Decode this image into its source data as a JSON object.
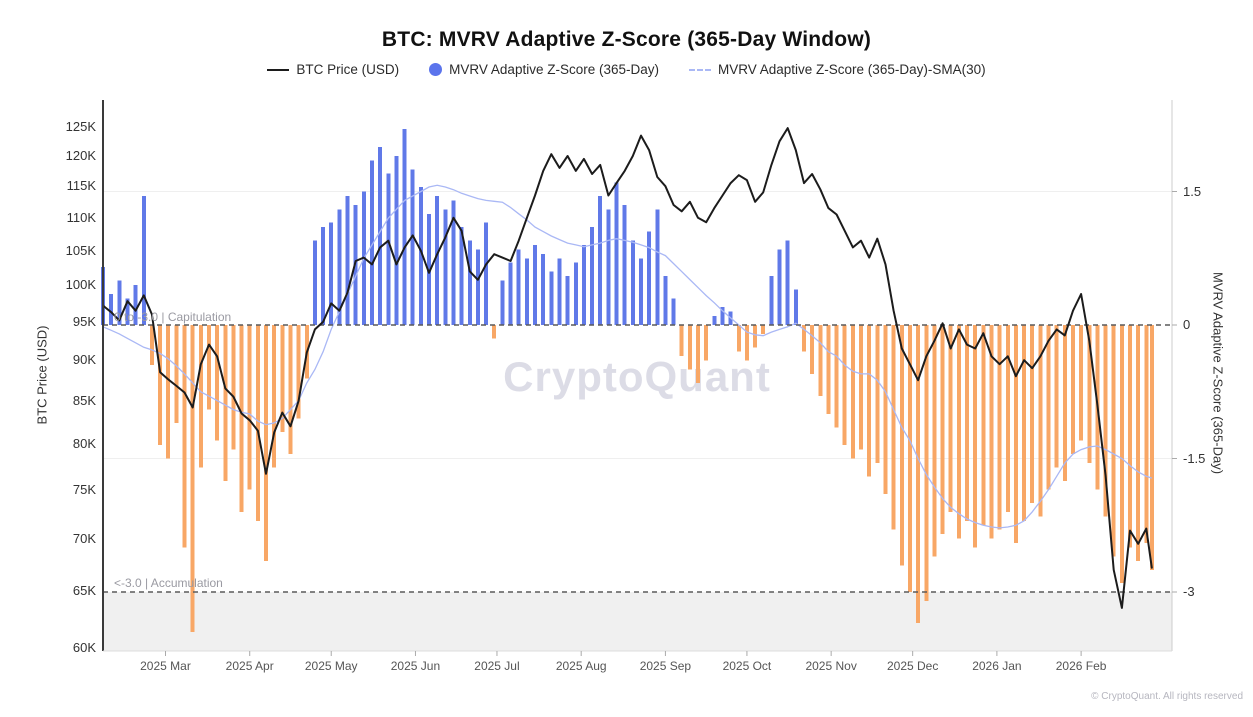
{
  "title": "BTC: MVRV Adaptive Z-Score (365-Day Window)",
  "watermark": "CryptoQuant",
  "footer": "© CryptoQuant. All rights reserved",
  "legend": [
    {
      "label": "BTC Price (USD)",
      "marker": "line",
      "color": "#1c1c1c"
    },
    {
      "label": "MVRV Adaptive Z-Score (365-Day)",
      "marker": "circle",
      "color": "#5b74ec"
    },
    {
      "label": "MVRV Adaptive Z-Score (365-Day)-SMA(30)",
      "marker": "thin-line",
      "color": "#aab8f5"
    }
  ],
  "annotations": {
    "capitulation": "0 to -3.0 | Capitulation",
    "accumulation": "<-3.0 | Accumulation"
  },
  "left_axis": {
    "title": "BTC Price (USD)",
    "scale": "log",
    "ticks": [
      {
        "v": 125,
        "label": "125K"
      },
      {
        "v": 120,
        "label": "120K"
      },
      {
        "v": 115,
        "label": "115K"
      },
      {
        "v": 110,
        "label": "110K"
      },
      {
        "v": 105,
        "label": "105K"
      },
      {
        "v": 100,
        "label": "100K"
      },
      {
        "v": 95,
        "label": "95K"
      },
      {
        "v": 90,
        "label": "90K"
      },
      {
        "v": 85,
        "label": "85K"
      },
      {
        "v": 80,
        "label": "80K"
      },
      {
        "v": 75,
        "label": "75K"
      },
      {
        "v": 70,
        "label": "70K"
      },
      {
        "v": 65,
        "label": "65K"
      },
      {
        "v": 60,
        "label": "60K"
      }
    ]
  },
  "right_axis": {
    "title": "MVRV Adaptive Z-Score (365-Day)",
    "ticks": [
      {
        "v": 1.5,
        "label": "1.5"
      },
      {
        "v": 0,
        "label": "0"
      },
      {
        "v": -1.5,
        "label": "-1.5"
      },
      {
        "v": -3,
        "label": "-3"
      }
    ]
  },
  "x_axis": {
    "ticks": [
      {
        "date": "2025-03-01",
        "label": "2025 Mar"
      },
      {
        "date": "2025-04-01",
        "label": "2025 Apr"
      },
      {
        "date": "2025-05-01",
        "label": "2025 May"
      },
      {
        "date": "2025-06-01",
        "label": "2025 Jun"
      },
      {
        "date": "2025-07-01",
        "label": "2025 Jul"
      },
      {
        "date": "2025-08-01",
        "label": "2025 Aug"
      },
      {
        "date": "2025-09-01",
        "label": "2025 Sep"
      },
      {
        "date": "2025-10-01",
        "label": "2025 Oct"
      },
      {
        "date": "2025-11-01",
        "label": "2025 Nov"
      },
      {
        "date": "2025-12-01",
        "label": "2025 Dec"
      },
      {
        "date": "2026-01-01",
        "label": "2026 Jan"
      },
      {
        "date": "2026-02-01",
        "label": "2026 Feb"
      }
    ]
  },
  "chart_data": {
    "type": "mixed",
    "title": "BTC: MVRV Adaptive Z-Score (365-Day Window)",
    "x_unit": "date",
    "price_unit": "thousand USD (log scale)",
    "z_axis_range": [
      -3.6,
      2.5
    ],
    "zones": {
      "capitulation": {
        "from": -3.0,
        "to": 0,
        "label": "0 to -3.0 | Capitulation"
      },
      "accumulation": {
        "below": -3.0,
        "label": "<-3.0 | Accumulation",
        "fill": "#f0f0f0"
      }
    },
    "dashed_lines_z": [
      0,
      -3
    ],
    "faint_gridlines_z": [
      1.5,
      -1.5
    ],
    "colors": {
      "price_line": "#1c1c1c",
      "bar_positive": "#6079e8",
      "bar_negative": "#f8a766",
      "sma_line": "#aab8f5",
      "dashed_line": "#5a5a5a"
    },
    "x": [
      "2025-02-06",
      "2025-02-09",
      "2025-02-12",
      "2025-02-15",
      "2025-02-18",
      "2025-02-21",
      "2025-02-24",
      "2025-02-27",
      "2025-03-02",
      "2025-03-05",
      "2025-03-08",
      "2025-03-11",
      "2025-03-14",
      "2025-03-17",
      "2025-03-20",
      "2025-03-23",
      "2025-03-26",
      "2025-03-29",
      "2025-04-01",
      "2025-04-04",
      "2025-04-07",
      "2025-04-10",
      "2025-04-13",
      "2025-04-16",
      "2025-04-19",
      "2025-04-22",
      "2025-04-25",
      "2025-04-28",
      "2025-05-01",
      "2025-05-04",
      "2025-05-07",
      "2025-05-10",
      "2025-05-13",
      "2025-05-16",
      "2025-05-19",
      "2025-05-22",
      "2025-05-25",
      "2025-05-28",
      "2025-05-31",
      "2025-06-03",
      "2025-06-06",
      "2025-06-09",
      "2025-06-12",
      "2025-06-15",
      "2025-06-18",
      "2025-06-21",
      "2025-06-24",
      "2025-06-27",
      "2025-06-30",
      "2025-07-03",
      "2025-07-06",
      "2025-07-09",
      "2025-07-12",
      "2025-07-15",
      "2025-07-18",
      "2025-07-21",
      "2025-07-24",
      "2025-07-27",
      "2025-07-30",
      "2025-08-02",
      "2025-08-05",
      "2025-08-08",
      "2025-08-11",
      "2025-08-14",
      "2025-08-17",
      "2025-08-20",
      "2025-08-23",
      "2025-08-26",
      "2025-08-29",
      "2025-09-01",
      "2025-09-04",
      "2025-09-07",
      "2025-09-10",
      "2025-09-13",
      "2025-09-16",
      "2025-09-19",
      "2025-09-22",
      "2025-09-25",
      "2025-09-28",
      "2025-10-01",
      "2025-10-04",
      "2025-10-07",
      "2025-10-10",
      "2025-10-13",
      "2025-10-16",
      "2025-10-19",
      "2025-10-22",
      "2025-10-25",
      "2025-10-28",
      "2025-10-31",
      "2025-11-03",
      "2025-11-06",
      "2025-11-09",
      "2025-11-12",
      "2025-11-15",
      "2025-11-18",
      "2025-11-21",
      "2025-11-24",
      "2025-11-27",
      "2025-11-30",
      "2025-12-03",
      "2025-12-06",
      "2025-12-09",
      "2025-12-12",
      "2025-12-15",
      "2025-12-18",
      "2025-12-21",
      "2025-12-24",
      "2025-12-27",
      "2025-12-30",
      "2026-01-02",
      "2026-01-05",
      "2026-01-08",
      "2026-01-11",
      "2026-01-14",
      "2026-01-17",
      "2026-01-20",
      "2026-01-23",
      "2026-01-26",
      "2026-01-29",
      "2026-02-01",
      "2026-02-04",
      "2026-02-07",
      "2026-02-10",
      "2026-02-13",
      "2026-02-16",
      "2026-02-19",
      "2026-02-22",
      "2026-02-25",
      "2026-02-27"
    ],
    "series": [
      {
        "name": "BTC Price (USD)",
        "type": "line",
        "axis": "price",
        "values": [
          97.2,
          96.3,
          95.2,
          97.8,
          96.5,
          98.6,
          96.0,
          88.5,
          87.6,
          86.8,
          86.0,
          84.2,
          89.5,
          92.0,
          90.5,
          86.5,
          85.5,
          83.5,
          82.7,
          81.5,
          76.7,
          81.3,
          83.6,
          82.0,
          85.0,
          91.0,
          94.0,
          95.0,
          97.5,
          96.5,
          99.0,
          103.5,
          104.0,
          103.0,
          105.5,
          106.5,
          103.0,
          105.5,
          107.3,
          105.0,
          101.8,
          104.5,
          107.0,
          110.0,
          108.0,
          102.0,
          100.8,
          103.0,
          104.5,
          104.0,
          103.5,
          106.5,
          110.0,
          113.5,
          117.5,
          120.3,
          118.0,
          120.0,
          117.5,
          119.5,
          117.0,
          118.5,
          113.5,
          115.5,
          117.5,
          120.0,
          123.5,
          121.0,
          116.5,
          115.0,
          112.0,
          111.0,
          112.5,
          110.0,
          109.3,
          111.5,
          113.5,
          115.5,
          116.8,
          116.0,
          112.5,
          114.0,
          118.5,
          122.5,
          124.8,
          121.0,
          115.5,
          117.0,
          114.5,
          111.5,
          110.5,
          108.0,
          105.5,
          106.5,
          104.0,
          106.8,
          103.0,
          96.5,
          91.5,
          89.5,
          87.5,
          90.5,
          92.5,
          94.8,
          91.5,
          94.0,
          92.0,
          91.5,
          93.5,
          90.5,
          89.5,
          90.5,
          88.0,
          90.0,
          89.0,
          90.5,
          92.5,
          94.0,
          93.2,
          96.5,
          98.8,
          92.5,
          84.5,
          76.5,
          67.0,
          63.5,
          70.8,
          69.5,
          71.0,
          67.2
        ]
      },
      {
        "name": "MVRV Adaptive Z-Score (365-Day)",
        "type": "bar",
        "axis": "z",
        "values": [
          0.65,
          0.35,
          0.5,
          0.3,
          0.45,
          1.45,
          -0.45,
          -1.35,
          -1.5,
          -1.1,
          -2.5,
          -3.45,
          -1.6,
          -0.95,
          -1.3,
          -1.75,
          -1.4,
          -2.1,
          -1.85,
          -2.2,
          -2.65,
          -1.6,
          -1.2,
          -1.45,
          -1.05,
          -0.6,
          0.95,
          1.1,
          1.15,
          1.3,
          1.45,
          1.35,
          1.5,
          1.85,
          2.0,
          1.7,
          1.9,
          2.2,
          1.75,
          1.55,
          1.25,
          1.45,
          1.3,
          1.4,
          1.1,
          0.95,
          0.85,
          1.15,
          -0.15,
          0.5,
          0.7,
          0.85,
          0.75,
          0.9,
          0.8,
          0.6,
          0.75,
          0.55,
          0.7,
          0.9,
          1.1,
          1.45,
          1.3,
          1.6,
          1.35,
          0.95,
          0.75,
          1.05,
          1.3,
          0.55,
          0.3,
          -0.35,
          -0.5,
          -0.65,
          -0.4,
          0.1,
          0.2,
          0.15,
          -0.3,
          -0.4,
          -0.25,
          -0.1,
          0.55,
          0.85,
          0.95,
          0.4,
          -0.3,
          -0.55,
          -0.8,
          -1.0,
          -1.15,
          -1.35,
          -1.5,
          -1.4,
          -1.7,
          -1.55,
          -1.9,
          -2.3,
          -2.7,
          -3.0,
          -3.35,
          -3.1,
          -2.6,
          -2.35,
          -2.1,
          -2.4,
          -2.2,
          -2.5,
          -2.25,
          -2.4,
          -2.3,
          -2.1,
          -2.45,
          -2.2,
          -2.0,
          -2.15,
          -1.85,
          -1.6,
          -1.75,
          -1.45,
          -1.3,
          -1.55,
          -1.85,
          -2.15,
          -2.6,
          -2.9,
          -2.5,
          -2.65,
          -2.45,
          -2.75
        ]
      },
      {
        "name": "MVRV Adaptive Z-Score (365-Day)-SMA(30)",
        "type": "line",
        "axis": "z",
        "values": [
          -0.02,
          -0.06,
          -0.1,
          -0.15,
          -0.2,
          -0.25,
          -0.28,
          -0.32,
          -0.38,
          -0.46,
          -0.55,
          -0.65,
          -0.75,
          -0.8,
          -0.85,
          -0.9,
          -0.95,
          -0.98,
          -1.0,
          -1.08,
          -1.12,
          -1.1,
          -1.05,
          -0.95,
          -0.85,
          -0.65,
          -0.5,
          -0.3,
          -0.05,
          0.15,
          0.35,
          0.55,
          0.75,
          0.9,
          1.05,
          1.2,
          1.3,
          1.4,
          1.45,
          1.5,
          1.55,
          1.57,
          1.55,
          1.52,
          1.48,
          1.45,
          1.42,
          1.4,
          1.39,
          1.38,
          1.32,
          1.25,
          1.18,
          1.1,
          1.05,
          1.0,
          0.96,
          0.92,
          0.9,
          0.88,
          0.9,
          0.92,
          0.95,
          0.97,
          0.95,
          0.93,
          0.9,
          0.87,
          0.82,
          0.78,
          0.69,
          0.6,
          0.51,
          0.42,
          0.33,
          0.25,
          0.16,
          0.08,
          0.0,
          -0.08,
          -0.11,
          -0.12,
          -0.08,
          -0.05,
          -0.02,
          0.02,
          -0.05,
          -0.12,
          -0.2,
          -0.3,
          -0.35,
          -0.45,
          -0.52,
          -0.55,
          -0.55,
          -0.62,
          -0.75,
          -0.95,
          -1.15,
          -1.3,
          -1.5,
          -1.68,
          -1.82,
          -1.95,
          -2.05,
          -2.12,
          -2.18,
          -2.22,
          -2.25,
          -2.27,
          -2.28,
          -2.27,
          -2.25,
          -2.2,
          -2.1,
          -1.98,
          -1.85,
          -1.7,
          -1.55,
          -1.45,
          -1.4,
          -1.37,
          -1.36,
          -1.4,
          -1.45,
          -1.5,
          -1.58,
          -1.65,
          -1.7,
          -1.72
        ]
      }
    ]
  }
}
